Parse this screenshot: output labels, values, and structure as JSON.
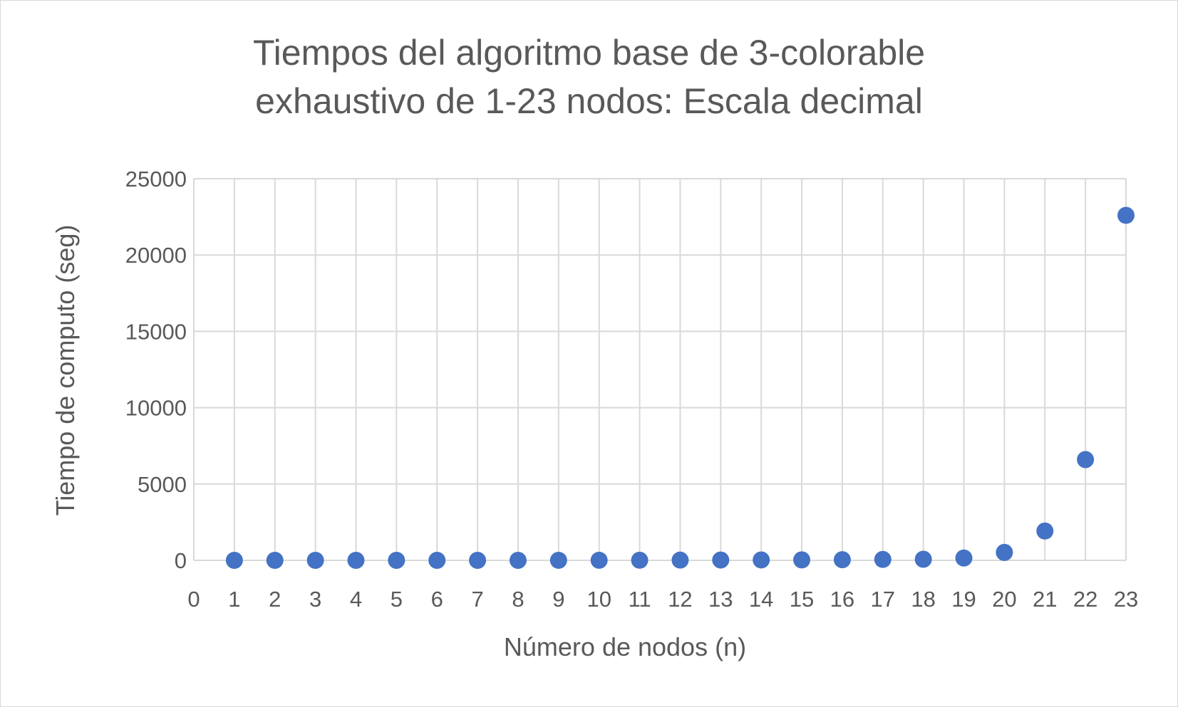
{
  "chart_data": {
    "type": "scatter",
    "title_lines": [
      "Tiempos del algoritmo base de 3-colorable",
      "exhaustivo de 1-23 nodos: Escala decimal"
    ],
    "xlabel": "Número de nodos (n)",
    "ylabel": "Tiempo de computo (seg)",
    "xlim": [
      0,
      23
    ],
    "ylim": [
      0,
      25000
    ],
    "x_ticks": [
      0,
      1,
      2,
      3,
      4,
      5,
      6,
      7,
      8,
      9,
      10,
      11,
      12,
      13,
      14,
      15,
      16,
      17,
      18,
      19,
      20,
      21,
      22,
      23
    ],
    "y_ticks": [
      0,
      5000,
      10000,
      15000,
      20000,
      25000
    ],
    "grid": true,
    "legend": "none",
    "marker_color": "#4472c4",
    "series": [
      {
        "x": [
          1,
          2,
          3,
          4,
          5,
          6,
          7,
          8,
          9,
          10,
          11,
          12,
          13,
          14,
          15,
          16,
          17,
          18,
          19,
          20,
          21,
          22,
          23
        ],
        "values": [
          0,
          0,
          0,
          0,
          0,
          0,
          0,
          1,
          2,
          4,
          8,
          15,
          20,
          25,
          30,
          40,
          60,
          70,
          150,
          520,
          1920,
          6600,
          22600
        ]
      }
    ]
  }
}
